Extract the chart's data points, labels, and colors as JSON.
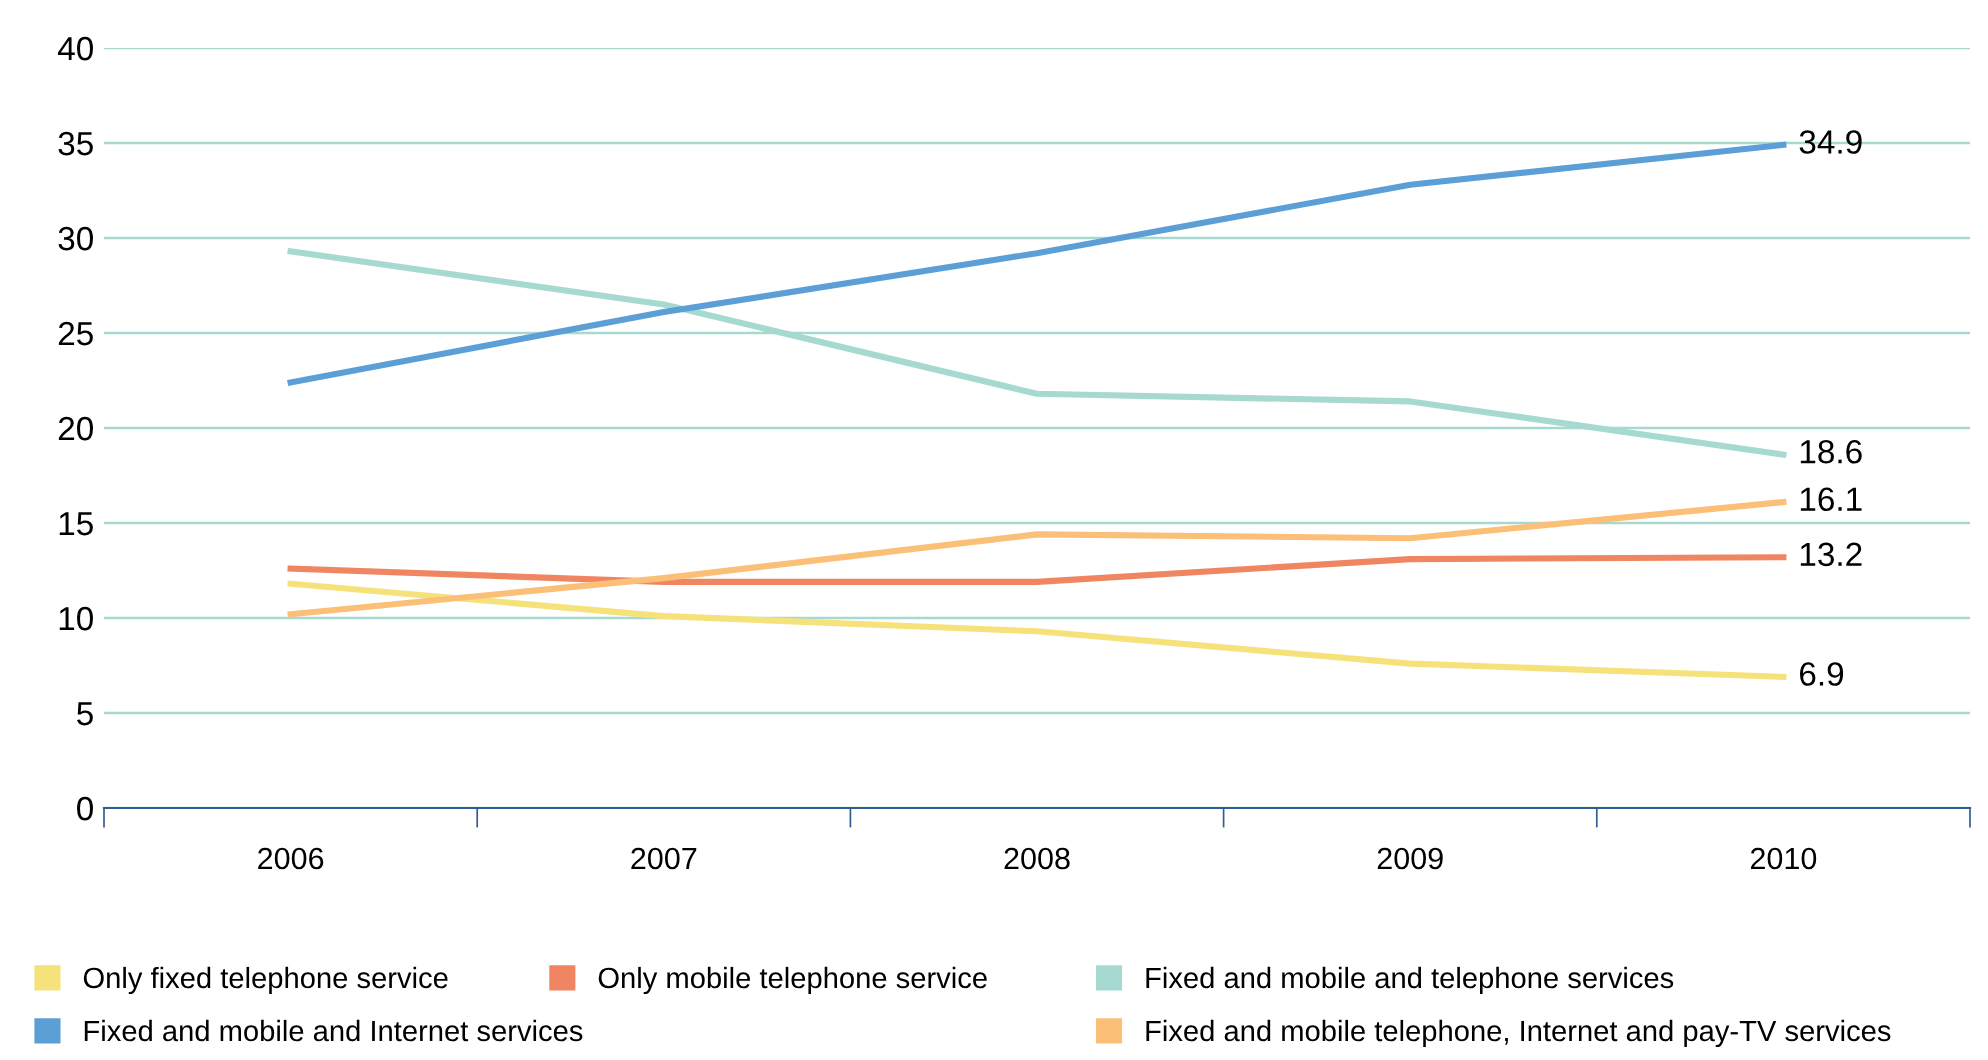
{
  "chart_data": {
    "type": "line",
    "categories": [
      "2006",
      "2007",
      "2008",
      "2009",
      "2010"
    ],
    "ylim": [
      0,
      40
    ],
    "yticks": [
      0,
      5,
      10,
      15,
      20,
      25,
      30,
      35,
      40
    ],
    "grid": "y",
    "legend": "bottom",
    "marker": "none",
    "line_style": "solid",
    "series": [
      {
        "name": "Only fixed telephone service",
        "color": "#f5e27a",
        "values": [
          11.8,
          10.1,
          9.3,
          7.6,
          6.9
        ],
        "value_labels": [
          null,
          null,
          null,
          null,
          "6.9"
        ]
      },
      {
        "name": "Only mobile telephone service",
        "color": "#f08562",
        "values": [
          12.6,
          11.9,
          11.9,
          13.1,
          13.2
        ],
        "value_labels": [
          null,
          null,
          null,
          null,
          "13.2"
        ]
      },
      {
        "name": "Fixed and mobile and telephone services",
        "color": "#a6d9d0",
        "values": [
          29.3,
          26.5,
          21.8,
          21.4,
          18.6
        ],
        "value_labels": [
          null,
          null,
          null,
          null,
          "18.6"
        ]
      },
      {
        "name": "Fixed and mobile and Internet services",
        "color": "#5b9fd6",
        "values": [
          22.4,
          26.1,
          29.2,
          32.8,
          34.9
        ],
        "value_labels": [
          null,
          null,
          null,
          null,
          "34.9"
        ]
      },
      {
        "name": "Fixed and mobile telephone, Internet and pay-TV services",
        "color": "#fbbf78",
        "values": [
          10.2,
          12.1,
          14.4,
          14.2,
          16.1
        ],
        "value_labels": [
          null,
          null,
          null,
          null,
          "16.1"
        ]
      }
    ]
  }
}
